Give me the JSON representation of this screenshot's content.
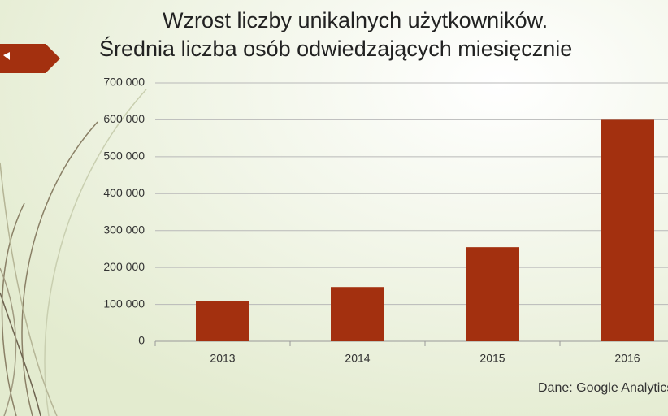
{
  "chart_data": {
    "type": "bar",
    "title": "Wzrost liczby unikalnych użytkowników.",
    "subtitle": "Średnia liczba osób odwiedzających miesięcznie",
    "source": "Dane: Google Analytics",
    "categories": [
      "2013",
      "2014",
      "2015",
      "2016"
    ],
    "values": [
      110000,
      147000,
      255000,
      600000
    ],
    "color": "#a3300f",
    "ylim": [
      0,
      700000
    ],
    "yticks": [
      0,
      {
        "value": 100000,
        "label": "100 000"
      },
      {
        "value": 200000,
        "label": "200 000"
      },
      {
        "value": 300000,
        "label": "300 000"
      },
      {
        "value": 400000,
        "label": "400 000"
      },
      {
        "value": 500000,
        "label": "500 000"
      },
      {
        "value": 600000,
        "label": "600 000"
      },
      {
        "value": 700000,
        "label": "700 000"
      }
    ],
    "grid": true
  }
}
